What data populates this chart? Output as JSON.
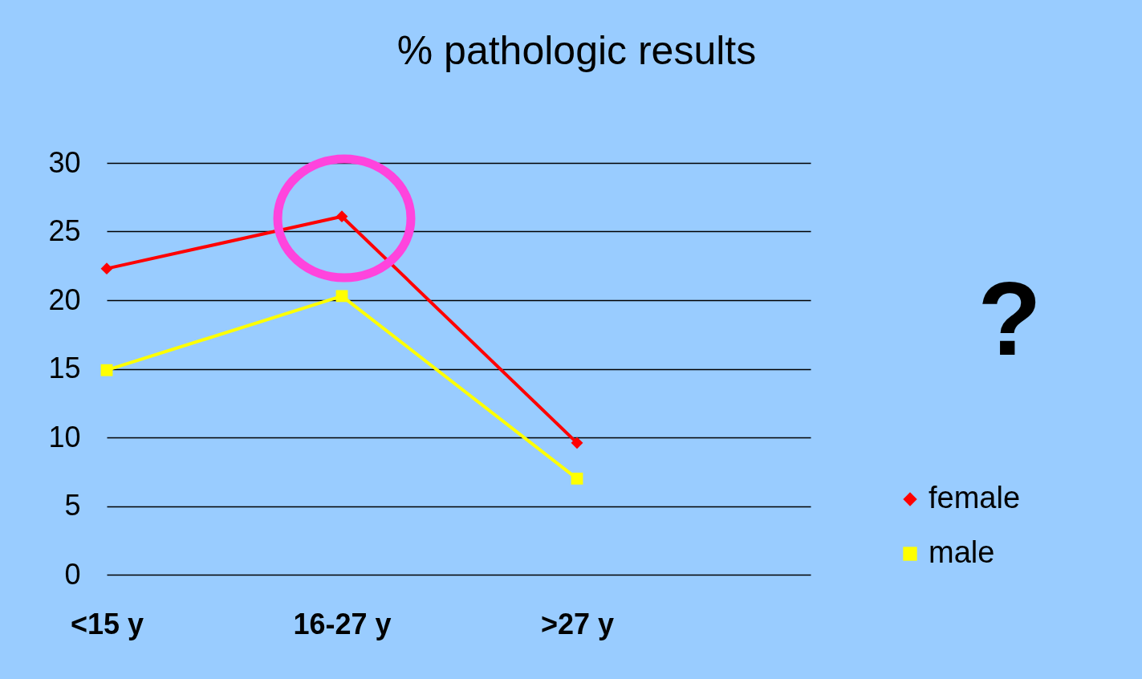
{
  "chart_data": {
    "type": "line",
    "title": "% pathologic results",
    "categories": [
      "<15 y",
      "16-27 y",
      ">27 y"
    ],
    "series": [
      {
        "name": "female",
        "color": "#ff0000",
        "marker": "diamond",
        "values": [
          22.3,
          26.1,
          9.6
        ]
      },
      {
        "name": "male",
        "color": "#ffff00",
        "marker": "square",
        "values": [
          14.9,
          20.3,
          7.0
        ]
      }
    ],
    "ylim": [
      0,
      30
    ],
    "yticks": [
      0,
      5,
      10,
      15,
      20,
      25,
      30
    ],
    "grid": "y",
    "legend": "right",
    "annotations": [
      "?"
    ]
  }
}
